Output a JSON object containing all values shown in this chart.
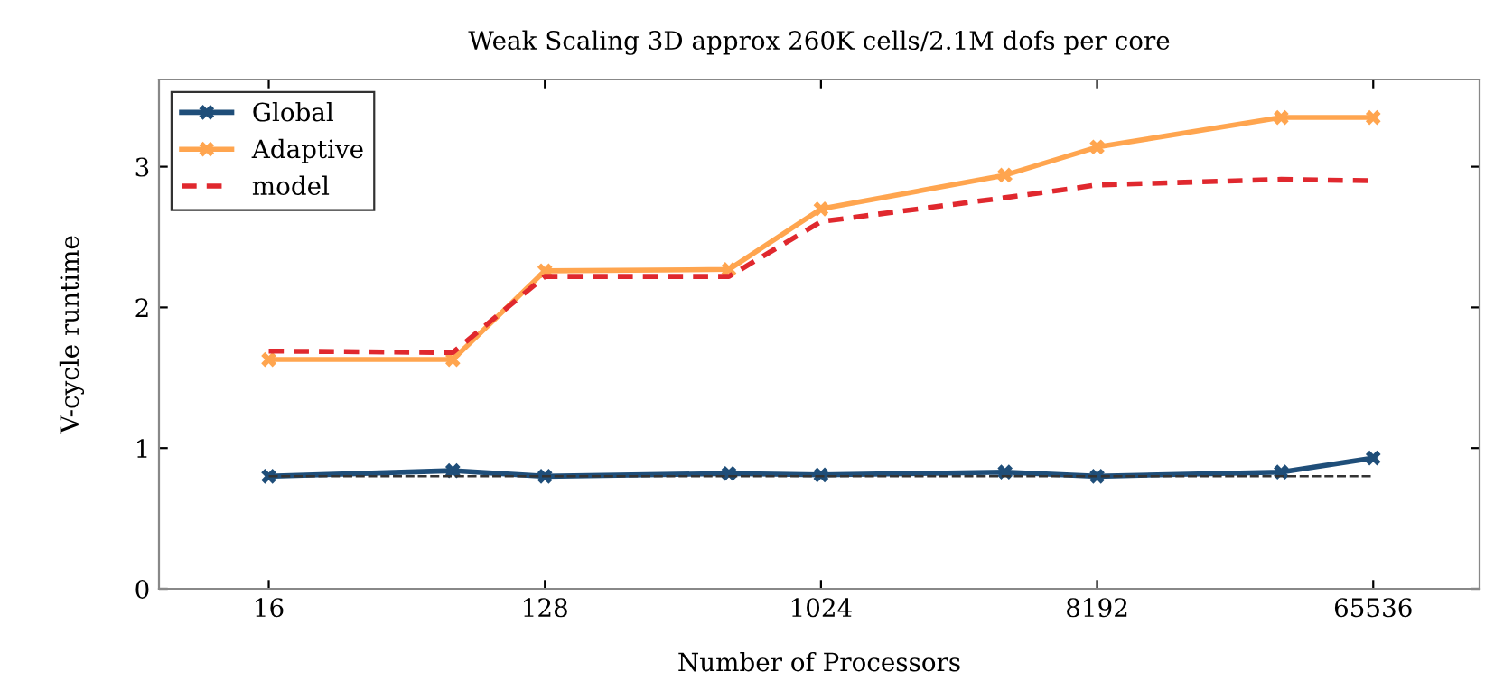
{
  "chart_data": {
    "type": "line",
    "title": "Weak Scaling 3D approx 260K cells/2.1M dofs per core",
    "xlabel": "Number of Processors",
    "ylabel": "V-cycle runtime",
    "x": [
      16,
      64,
      128,
      512,
      1024,
      4096,
      8192,
      32768,
      65536
    ],
    "log": "x",
    "xlim": [
      7,
      146000
    ],
    "xticks": [
      16,
      128,
      1024,
      8192,
      65536
    ],
    "ylim": [
      0,
      3.62
    ],
    "yticks": [
      0,
      1,
      2,
      3
    ],
    "grid": false,
    "legend": "top left",
    "series": [
      {
        "name": "Global",
        "color": "#1f4e79",
        "values": [
          0.8,
          0.84,
          0.8,
          0.82,
          0.81,
          0.83,
          0.8,
          0.83,
          0.93
        ],
        "marker": "cross",
        "line_style": "solid"
      },
      {
        "name": "Adaptive",
        "color": "#ffa54f",
        "values": [
          1.63,
          1.63,
          2.26,
          2.27,
          2.7,
          2.94,
          3.14,
          3.35,
          3.35
        ],
        "marker": "cross",
        "line_style": "solid"
      },
      {
        "name": "model",
        "color": "#e0282e",
        "values": [
          1.69,
          1.68,
          2.22,
          2.22,
          2.61,
          2.78,
          2.87,
          2.91,
          2.9
        ],
        "marker": "none",
        "line_style": "dashed"
      },
      {
        "color": "#333333",
        "values": [
          0.8,
          0.8,
          0.8,
          0.8,
          0.8,
          0.8,
          0.8,
          0.8,
          0.8
        ],
        "marker": "none",
        "line_style": "dashed"
      }
    ]
  }
}
